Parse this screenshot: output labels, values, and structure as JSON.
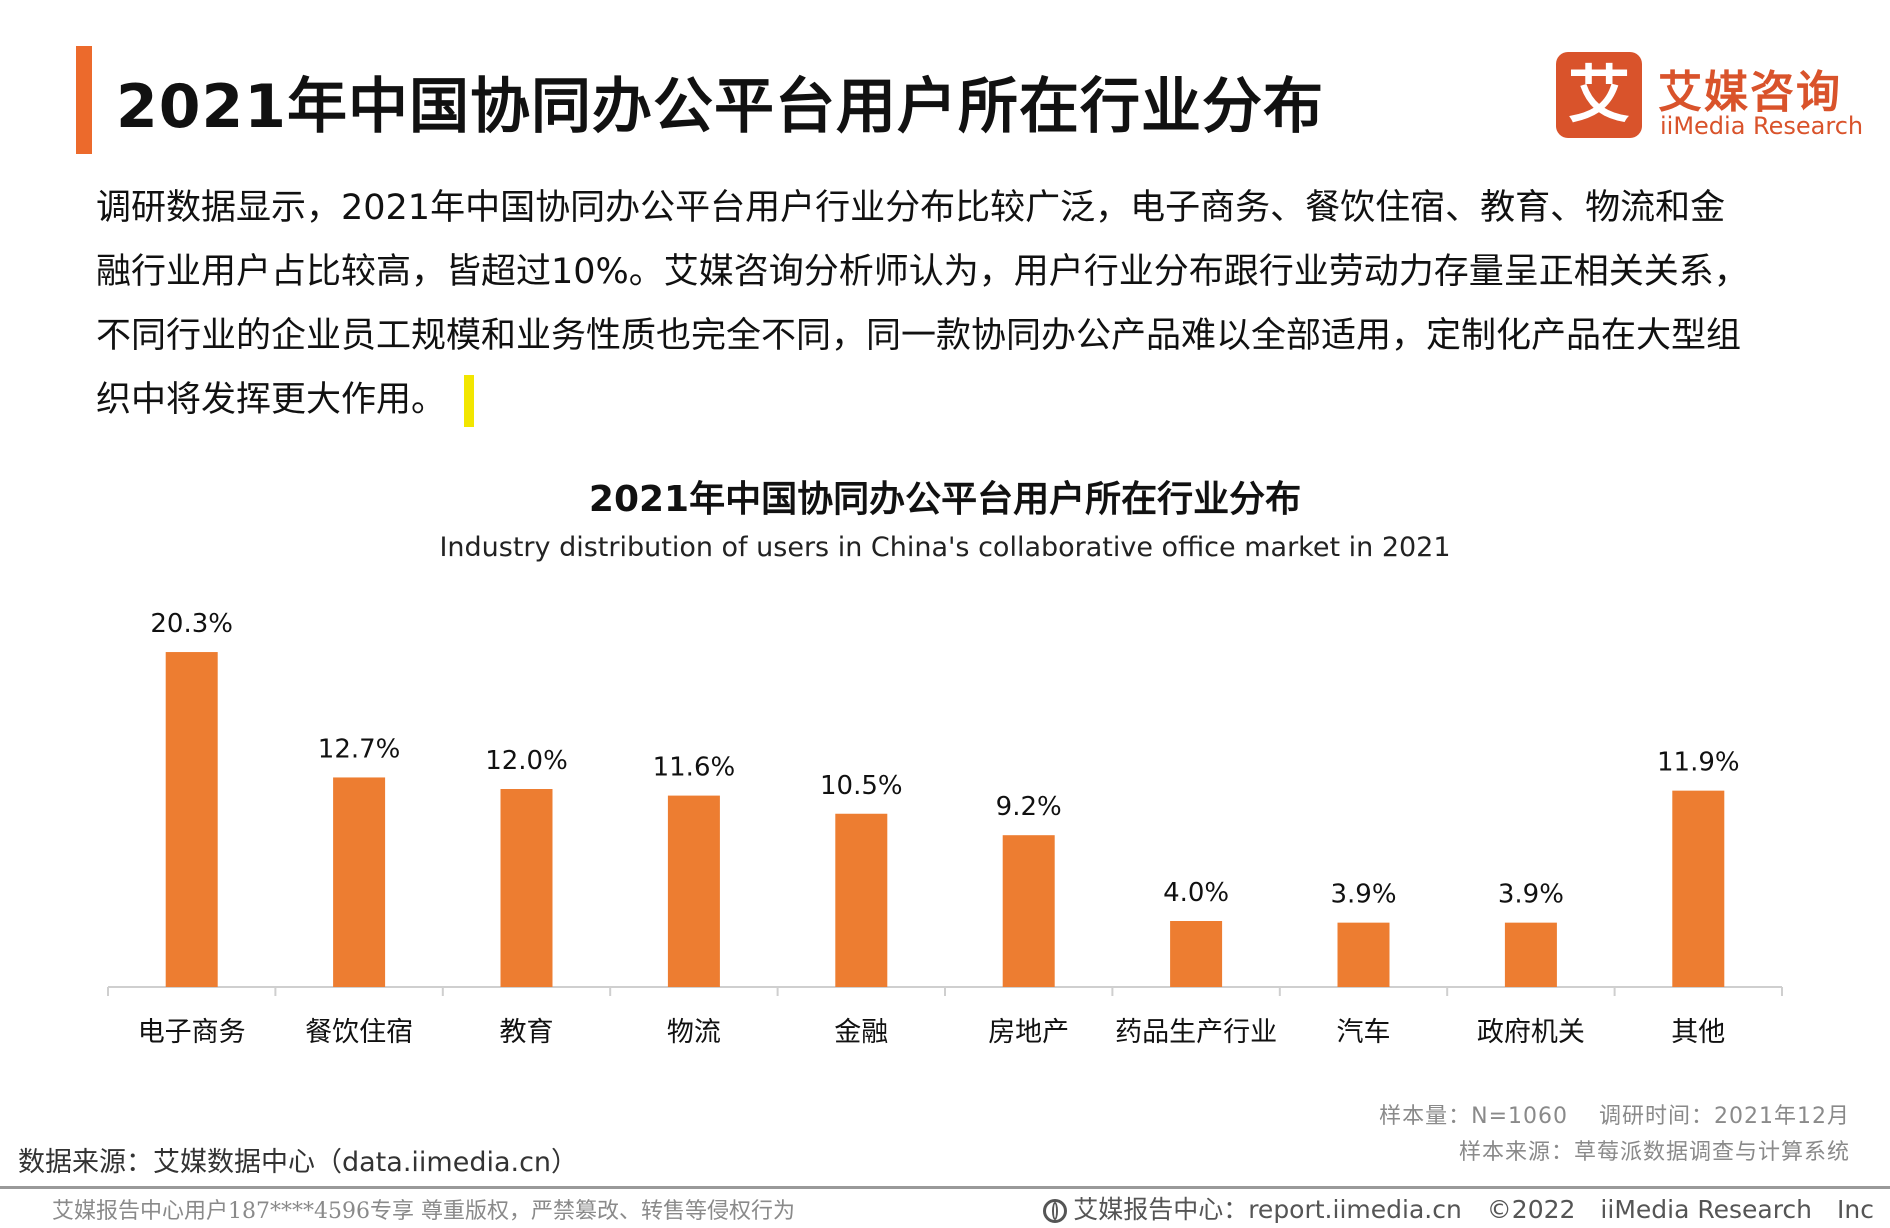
{
  "header": {
    "title": "2021年中国协同办公平台用户所在行业分布",
    "logo_mark": "艾",
    "logo_cn": "艾媒咨询",
    "logo_en": "iiMedia Research"
  },
  "intro": {
    "lines": [
      "调研数据显示，2021年中国协同办公平台用户行业分布比较广泛，电子商务、餐饮住宿、教育、物流和金",
      "融行业用户占比较高，皆超过10%。艾媒咨询分析师认为，用户行业分布跟行业劳动力存量呈正相关关系，",
      "不同行业的企业员工规模和业务性质也完全不同，同一款协同办公产品难以全部适用，定制化产品在大型组",
      "织中将发挥更大作用。"
    ]
  },
  "chart_data": {
    "type": "bar",
    "title": "2021年中国协同办公平台用户所在行业分布",
    "subtitle": "Industry distribution of users in China's collaborative office market in 2021",
    "categories": [
      "电子商务",
      "餐饮住宿",
      "教育",
      "物流",
      "金融",
      "房地产",
      "药品生产行业",
      "汽车",
      "政府机关",
      "其他"
    ],
    "values": [
      20.3,
      12.7,
      12.0,
      11.6,
      10.5,
      9.2,
      4.0,
      3.9,
      3.9,
      11.9
    ],
    "value_labels": [
      "20.3%",
      "12.7%",
      "12.0%",
      "11.6%",
      "10.5%",
      "9.2%",
      "4.0%",
      "3.9%",
      "3.9%",
      "11.9%"
    ],
    "unit": "%",
    "xlabel": "",
    "ylabel": "",
    "ylim": [
      0,
      22
    ],
    "grid": false,
    "color": "#ed7d31"
  },
  "meta": {
    "sample": "样本量：N=1060　 调研时间：2021年12月",
    "sample_source": "样本来源：草莓派数据调查与计算系统"
  },
  "source": "数据来源：艾媒数据中心（data.iimedia.cn）",
  "footer": {
    "left": "艾媒报告中心用户187****4596专享 尊重版权，严禁篡改、转售等侵权行为",
    "right": "艾媒报告中心：report.iimedia.cn　©2022　iiMedia Research　Inc"
  }
}
